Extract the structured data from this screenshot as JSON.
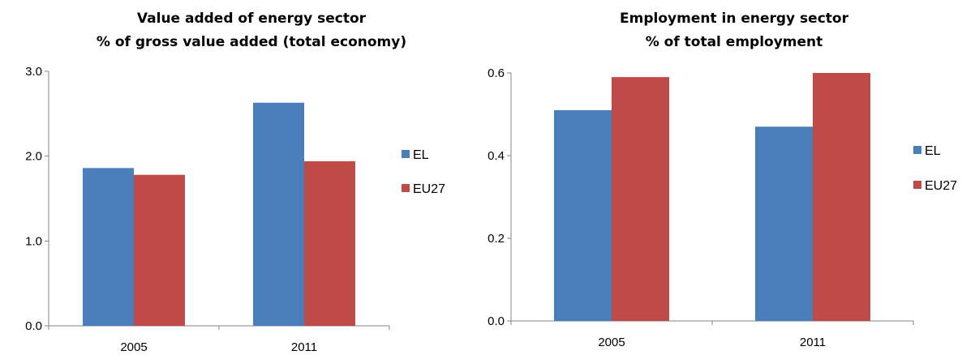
{
  "colors": {
    "EL": "#4a7ebb",
    "EU27": "#be4b48",
    "axis": "#868686"
  },
  "chart_data": [
    {
      "type": "bar",
      "title": "Value added of energy sector",
      "subtitle": "% of gross value added (total economy)",
      "xlabel": "",
      "ylabel": "",
      "categories": [
        "2005",
        "2011"
      ],
      "series": [
        {
          "name": "EL",
          "values": [
            1.86,
            2.63
          ]
        },
        {
          "name": "EU27",
          "values": [
            1.78,
            1.94
          ]
        }
      ],
      "ylim": [
        0,
        3
      ],
      "yticks": [
        "0.0",
        "1.0",
        "2.0",
        "3.0"
      ],
      "legend_position": "right",
      "grid": false
    },
    {
      "type": "bar",
      "title": "Employment in energy sector",
      "subtitle": "% of total employment",
      "xlabel": "",
      "ylabel": "",
      "categories": [
        "2005",
        "2011"
      ],
      "series": [
        {
          "name": "EL",
          "values": [
            0.51,
            0.47
          ]
        },
        {
          "name": "EU27",
          "values": [
            0.59,
            0.6
          ]
        }
      ],
      "ylim": [
        0,
        0.6
      ],
      "yticks": [
        "0.0",
        "0.2",
        "0.4",
        "0.6"
      ],
      "legend_position": "right",
      "grid": false
    }
  ]
}
